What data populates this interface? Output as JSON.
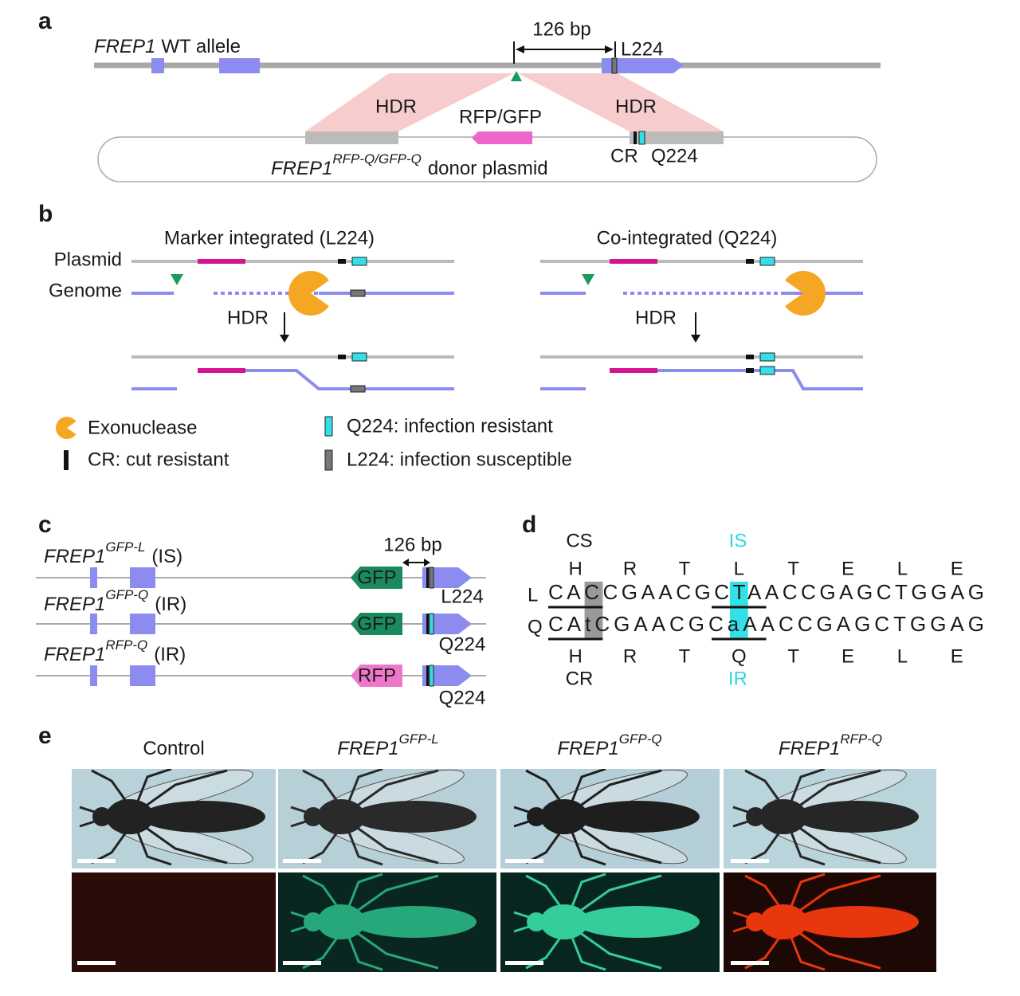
{
  "panel_a": {
    "label": "a",
    "gene": "FREP1",
    "allele": "WT allele",
    "distance": "126 bp",
    "site": "L224",
    "hdr_left": "HDR",
    "marker": "RFP/GFP",
    "hdr_right": "HDR",
    "cr": "CR",
    "q_site": "Q224",
    "plasmid_gene": "FREP1",
    "plasmid_superscript": "RFP-Q/GFP-Q",
    "plasmid_name": "donor plasmid"
  },
  "panel_b": {
    "label": "b",
    "left_title": "Marker integrated (L224)",
    "right_title": "Co-integrated (Q224)",
    "plasmid": "Plasmid",
    "genome": "Genome",
    "hdr_left": "HDR",
    "hdr_right": "HDR",
    "legend": [
      "Exonuclease",
      "CR: cut resistant",
      "Q224: infection resistant",
      "L224: infection susceptible"
    ]
  },
  "panel_c": {
    "label": "c",
    "distance": "126 bp",
    "rows": [
      {
        "gene": "FREP1",
        "superscript": "GFP-L",
        "status": "(IS)",
        "marker": "GFP",
        "site": "L224"
      },
      {
        "gene": "FREP1",
        "superscript": "GFP-Q",
        "status": "(IR)",
        "marker": "GFP",
        "site": "Q224"
      },
      {
        "gene": "FREP1",
        "superscript": "RFP-Q",
        "status": "(IR)",
        "marker": "RFP",
        "site": "Q224"
      }
    ]
  },
  "panel_d": {
    "label": "d",
    "top_left": "CS",
    "top_right": "IS",
    "top_residues": [
      "H",
      "R",
      "T",
      "L",
      "T",
      "E",
      "L",
      "E"
    ],
    "rows": [
      {
        "label": "L",
        "sequence": "CACCGAACGCTAACCGAGCTGGAG"
      },
      {
        "label": "Q",
        "sequence": "CAtCGAACGCaAACCGAGCTGGAG"
      }
    ],
    "bottom_residues": [
      "H",
      "R",
      "T",
      "Q",
      "T",
      "E",
      "L",
      "E"
    ],
    "bottom_left": "CR",
    "bottom_right": "IR"
  },
  "panel_e": {
    "label": "e",
    "columns": [
      {
        "title": "Control"
      },
      {
        "gene": "FREP1",
        "superscript": "GFP-L"
      },
      {
        "gene": "FREP1",
        "superscript": "GFP-Q"
      },
      {
        "gene": "FREP1",
        "superscript": "RFP-Q"
      }
    ]
  }
}
